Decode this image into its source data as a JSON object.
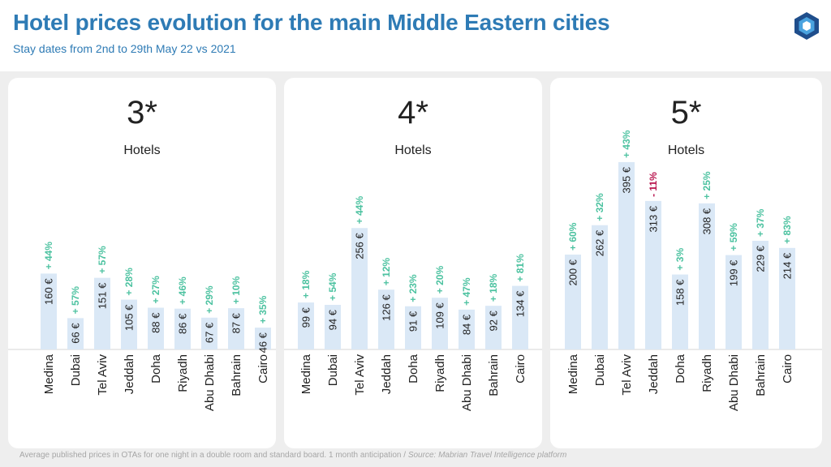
{
  "header": {
    "title": "Hotel prices evolution for the main Middle Eastern cities",
    "subtitle": "Stay dates from 2nd to 29th May 22 vs 2021"
  },
  "logo_icon": "hexagon-logo-icon",
  "colors": {
    "title": "#2e7bb5",
    "bar": "#dae8f6",
    "positive": "#4cc2a0",
    "negative": "#b8134c",
    "background": "#eeeeee"
  },
  "footer": {
    "note": "Average published prices in OTAs for one night in a double room and standard board. 1 month anticipation /",
    "source": "Source: Mabrian Travel Intelligence platform"
  },
  "chart_data": [
    {
      "type": "bar",
      "title": "3*",
      "subtitle": "Hotels",
      "categories": [
        "Medina",
        "Dubai",
        "Tel Aviv",
        "Jeddah",
        "Doha",
        "Riyadh",
        "Abu Dhabi",
        "Bahrain",
        "Cairo"
      ],
      "values": [
        160,
        66,
        151,
        105,
        88,
        86,
        67,
        87,
        46
      ],
      "value_labels": [
        "160 €",
        "66 €",
        "151 €",
        "105 €",
        "88 €",
        "86 €",
        "67 €",
        "87 €",
        "46 €"
      ],
      "changes": [
        "+ 44%",
        "+ 57%",
        "+ 57%",
        "+ 28%",
        "+ 27%",
        "+ 46%",
        "+ 29%",
        "+ 10%",
        "+ 35%"
      ],
      "change_negative": [
        false,
        false,
        false,
        false,
        false,
        false,
        false,
        false,
        false
      ],
      "unit": "€",
      "ylim": [
        0,
        430
      ]
    },
    {
      "type": "bar",
      "title": "4*",
      "subtitle": "Hotels",
      "categories": [
        "Medina",
        "Dubai",
        "Tel Aviv",
        "Jeddah",
        "Doha",
        "Riyadh",
        "Abu Dhabi",
        "Bahrain",
        "Cairo"
      ],
      "values": [
        99,
        94,
        256,
        126,
        91,
        109,
        84,
        92,
        134
      ],
      "value_labels": [
        "99 €",
        "94 €",
        "256 €",
        "126 €",
        "91 €",
        "109 €",
        "84 €",
        "92 €",
        "134 €"
      ],
      "changes": [
        "+ 18%",
        "+ 54%",
        "+ 44%",
        "+ 12%",
        "+ 23%",
        "+ 20%",
        "+ 47%",
        "+ 18%",
        "+ 81%"
      ],
      "change_negative": [
        false,
        false,
        false,
        false,
        false,
        false,
        false,
        false,
        false
      ],
      "unit": "€",
      "ylim": [
        0,
        430
      ]
    },
    {
      "type": "bar",
      "title": "5*",
      "subtitle": "Hotels",
      "categories": [
        "Medina",
        "Dubai",
        "Tel Aviv",
        "Jeddah",
        "Doha",
        "Riyadh",
        "Abu Dhabi",
        "Bahrain",
        "Cairo"
      ],
      "values": [
        200,
        262,
        395,
        313,
        158,
        308,
        199,
        229,
        214
      ],
      "value_labels": [
        "200 €",
        "262 €",
        "395 €",
        "313 €",
        "158 €",
        "308 €",
        "199 €",
        "229 €",
        "214 €"
      ],
      "changes": [
        "+ 60%",
        "+ 32%",
        "+ 43%",
        "- 11%",
        "+ 3%",
        "+ 25%",
        "+ 59%",
        "+ 37%",
        "+ 83%"
      ],
      "change_negative": [
        false,
        false,
        false,
        true,
        false,
        false,
        false,
        false,
        false
      ],
      "unit": "€",
      "ylim": [
        0,
        430
      ]
    }
  ]
}
